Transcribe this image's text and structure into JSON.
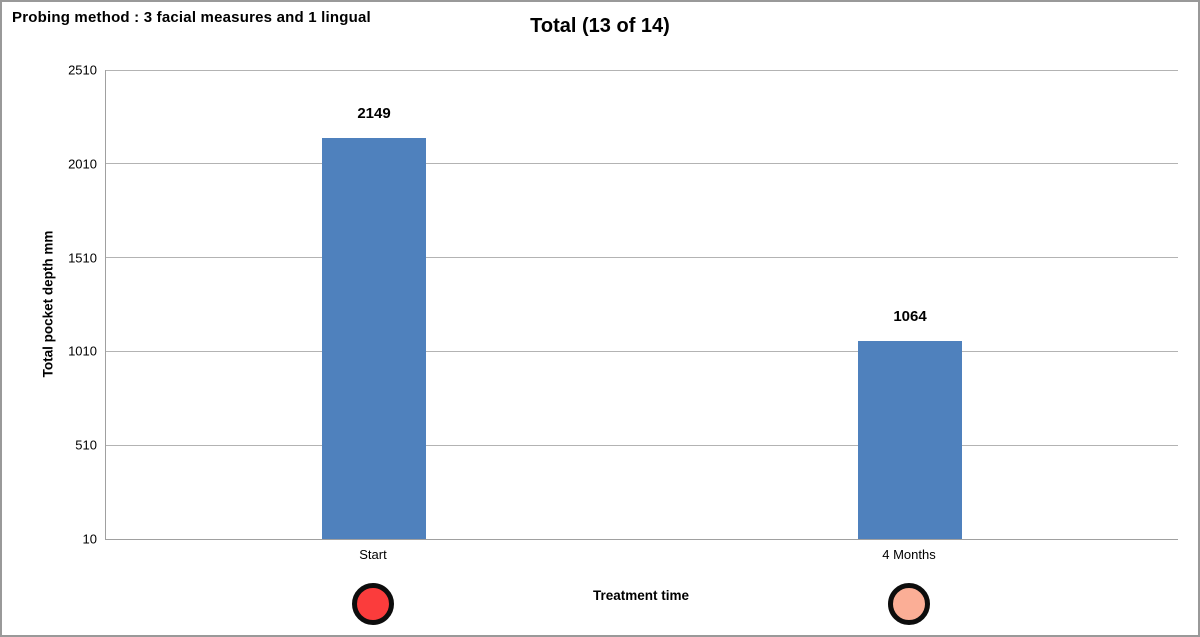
{
  "header_note": "Probing method : 3 facial measures and 1 lingual",
  "chart_data": {
    "type": "bar",
    "title": "Total (13 of 14)",
    "categories": [
      "Start",
      "4 Months"
    ],
    "values": [
      2149,
      1064
    ],
    "data_labels": [
      "2149",
      "1064"
    ],
    "xlabel": "Treatment time",
    "ylabel": "Total pocket depth mm",
    "yticks": [
      10,
      510,
      1010,
      1510,
      2010,
      2510
    ],
    "ylim": [
      10,
      2510
    ],
    "grid": true,
    "legend": false,
    "bar_color": "#4F81BD",
    "category_markers": [
      {
        "name": "red-circle-marker",
        "fill": "#FB3C3C"
      },
      {
        "name": "salmon-circle-marker",
        "fill": "#FBAE96"
      }
    ],
    "marker_border_color": "#0d0d0d"
  },
  "colors": {
    "gridline": "#B3B3B3",
    "axis_line": "#A0A0A0",
    "outer_border": "#999999",
    "text": "#000000",
    "background": "#FFFFFF"
  }
}
